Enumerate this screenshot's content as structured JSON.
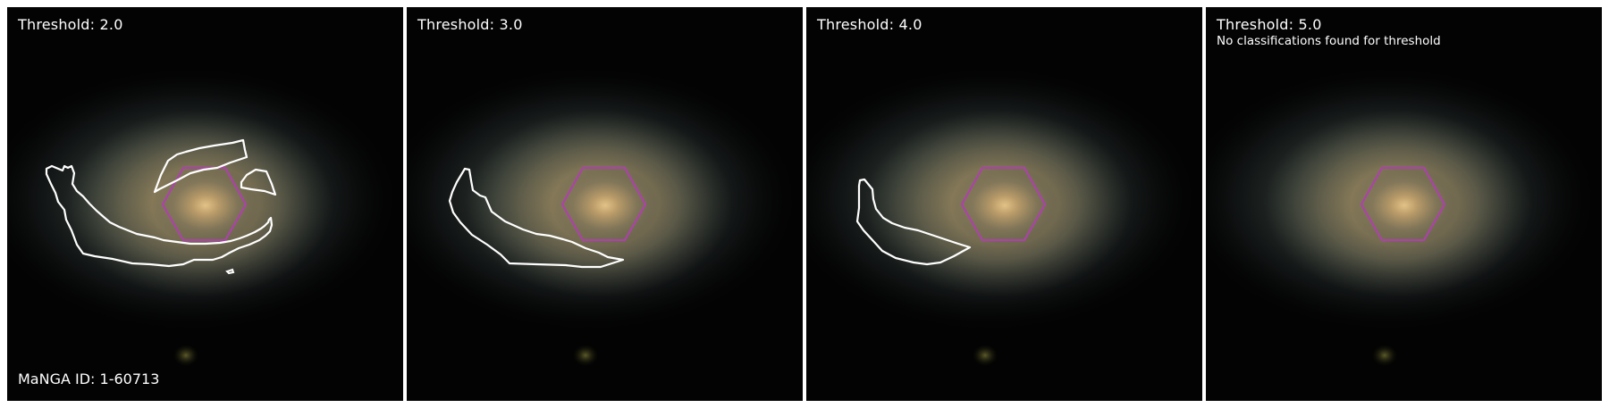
{
  "manga_id_label": "MaNGA ID: 1-60713",
  "colors": {
    "background": "#030303",
    "hexagon": "#b03fb0",
    "contour": "#ffffff",
    "galaxy_core": "#d6b67a"
  },
  "panels": [
    {
      "title": "Threshold: 2.0",
      "threshold": 2.0,
      "note": "",
      "contour_count": 3
    },
    {
      "title": "Threshold: 3.0",
      "threshold": 3.0,
      "note": "",
      "contour_count": 1
    },
    {
      "title": "Threshold: 4.0",
      "threshold": 4.0,
      "note": "",
      "contour_count": 1
    },
    {
      "title": "Threshold: 5.0",
      "threshold": 5.0,
      "note": "No classifications found for threshold",
      "contour_count": 0
    }
  ]
}
